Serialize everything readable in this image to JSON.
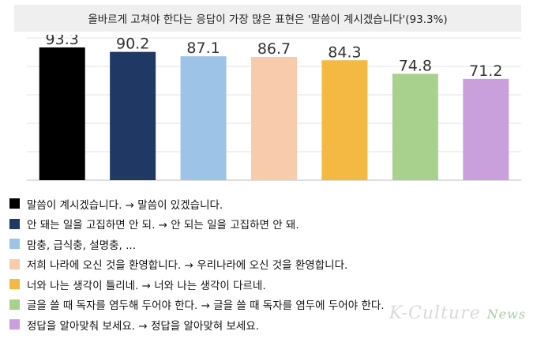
{
  "title": "올바르게 고쳐야 한다는 응답이 가장 많은 표현은 '말씀이 계시겠습니다'(93.3%)",
  "chart_data": {
    "type": "bar",
    "categories": [
      "말씀이 계시겠습니다. → 말씀이 있겠습니다.",
      "안 돼는 일을 고집하면 안 되. → 안 되는 일을 고집하면 안 돼.",
      "맘충, 급식충, 설명충, ...",
      "저희 나라에 오신 것을 환영합니다. → 우리나라에 오신 것을 환영합니다.",
      "너와 나는 생각이 틀리네. → 너와 나는 생각이 다르네.",
      "글을 쓸 때 독자를 염두해 두어야 한다. → 글을 쓸 때 독자를 염두에 두어야 한다.",
      "정답을 알아맞춰 보세요. → 정답을 알아맞혀 보세요."
    ],
    "values": [
      93.3,
      90.2,
      87.1,
      86.7,
      84.3,
      74.8,
      71.2
    ],
    "value_labels": [
      "93.3",
      "90.2",
      "87.1",
      "86.7",
      "84.3",
      "74.8",
      "71.2"
    ],
    "colors": [
      "#000000",
      "#1f3864",
      "#9dc3e6",
      "#f8cbad",
      "#f4b942",
      "#a9d18e",
      "#c9a0dc"
    ],
    "ylim": [
      0,
      100
    ],
    "grid": true,
    "legend_position": "bottom"
  },
  "watermark": {
    "text": "K-Culture",
    "accent": "News"
  }
}
